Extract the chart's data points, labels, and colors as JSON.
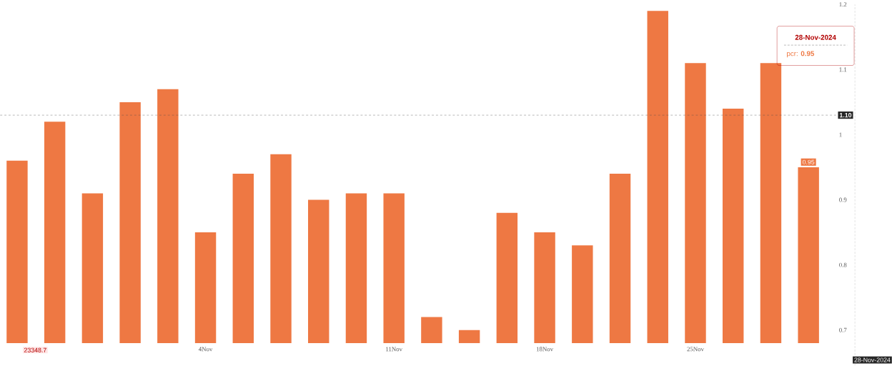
{
  "chart_data": {
    "type": "bar",
    "categories": [
      null,
      null,
      null,
      null,
      null,
      "4Nov",
      null,
      null,
      null,
      null,
      "11Nov",
      null,
      null,
      null,
      "18Nov",
      null,
      null,
      null,
      "25Nov",
      null,
      null,
      null
    ],
    "values": [
      0.96,
      1.02,
      0.91,
      1.05,
      1.07,
      0.85,
      0.94,
      0.97,
      0.9,
      0.91,
      0.91,
      0.72,
      0.7,
      0.88,
      0.85,
      0.83,
      0.94,
      1.19,
      1.11,
      1.04,
      1.11,
      0.95
    ],
    "value_labels": [
      null,
      null,
      null,
      null,
      null,
      null,
      null,
      null,
      null,
      null,
      null,
      null,
      null,
      null,
      null,
      null,
      null,
      null,
      null,
      null,
      null,
      "0.95"
    ],
    "color": "#ee7843",
    "ylim": [
      0.68,
      1.2
    ],
    "yticks": [
      0.7,
      0.8,
      0.9,
      {
        "value": 1.0,
        "label": "1"
      },
      1.1,
      1.2
    ],
    "ref_lines": [
      {
        "axis": "y",
        "value": 1.03,
        "line_style": "dashed"
      }
    ],
    "annotations": [
      "28-Nov-2024",
      "pcr: **0.95**",
      "23348.7",
      "28-Nov-2024",
      "1.10"
    ],
    "grid": false
  }
}
